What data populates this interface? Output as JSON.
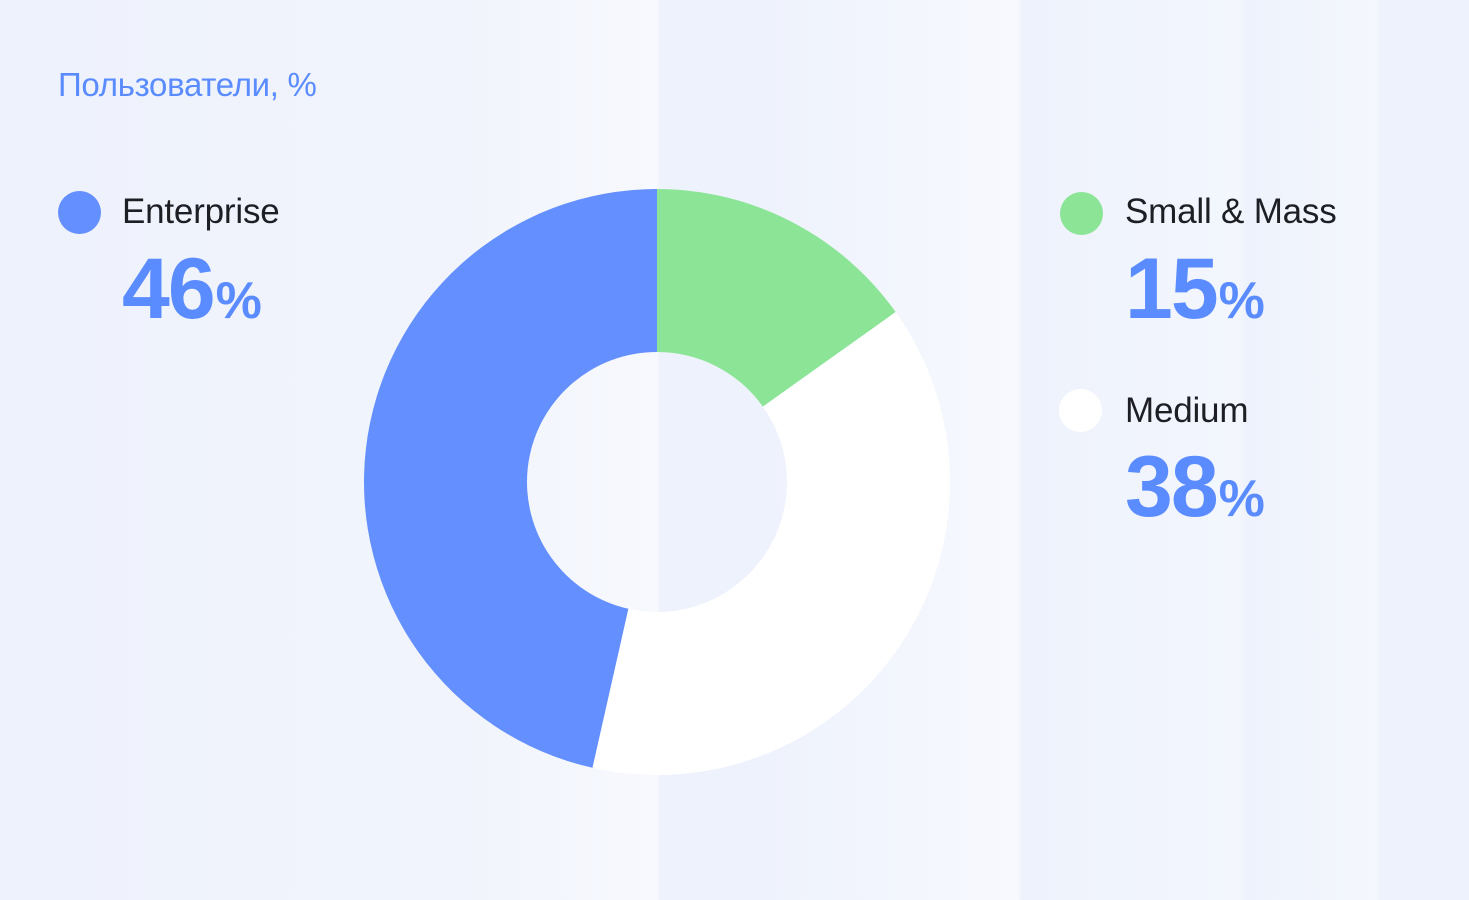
{
  "chart_data": {
    "type": "pie",
    "title": "Пользователи, %",
    "categories": [
      "Enterprise",
      "Small & Mass",
      "Medium"
    ],
    "values": [
      46,
      15,
      38
    ],
    "unit": "%",
    "legend_placement": "sides",
    "series": [
      {
        "name": "Enterprise",
        "value": 46,
        "color": "#648ffe"
      },
      {
        "name": "Small & Mass",
        "value": 15,
        "color": "#8ce597"
      },
      {
        "name": "Medium",
        "value": 38,
        "color": "#ffffff"
      }
    ]
  },
  "legend": [
    {
      "label": "Enterprise",
      "value": "46",
      "unit": "%",
      "color": "#648ffe"
    },
    {
      "label": "Small & Mass",
      "value": "15",
      "unit": "%",
      "color": "#8ce597"
    },
    {
      "label": "Medium",
      "value": "38",
      "unit": "%",
      "color": "#ffffff"
    }
  ]
}
